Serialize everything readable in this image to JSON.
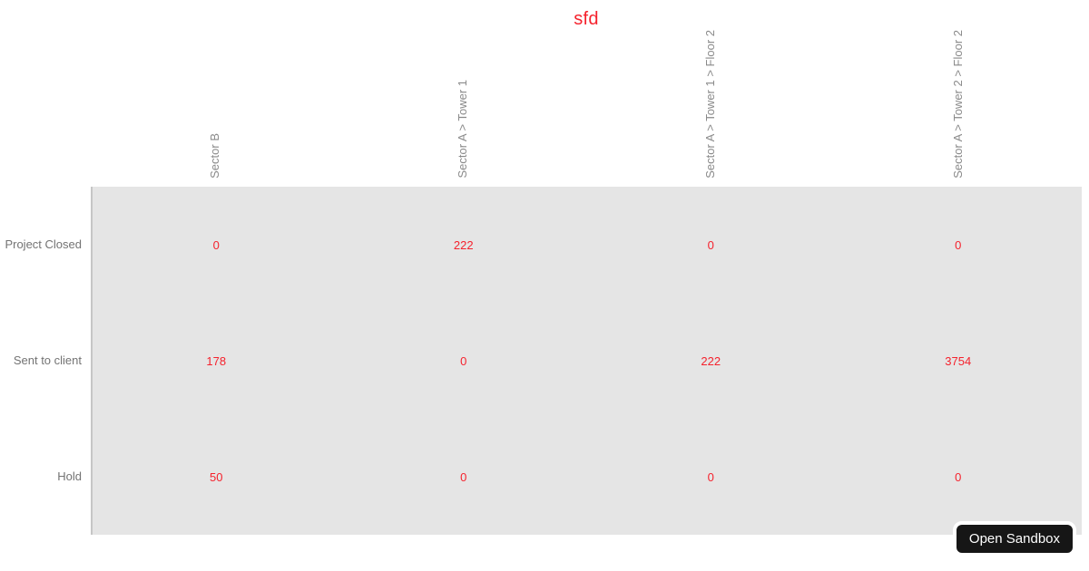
{
  "title": "sfd",
  "colors": {
    "title_red": "#f5222d",
    "value_red": "#f5222d",
    "column_label_gray": "#8a8a8a",
    "row_label_gray": "#737373",
    "plot_background": "#e5e5e5",
    "axis_line": "#c6c6c6",
    "button_background": "#161616",
    "button_text": "#ffffff"
  },
  "chart_data": {
    "type": "heatmap",
    "title": "sfd",
    "columns": [
      "Sector B",
      "Sector A > Tower 1",
      "Sector A > Tower 1 > Floor 2",
      "Sector A > Tower 2 > Floor 2"
    ],
    "rows": [
      "Project Closed",
      "Sent to client",
      "Hold"
    ],
    "values": [
      [
        0,
        222,
        0,
        0
      ],
      [
        178,
        0,
        222,
        3754
      ],
      [
        50,
        0,
        0,
        0
      ]
    ],
    "legend": "off",
    "grid": "off",
    "column_labels_rotated": true,
    "value_color": "#f5222d"
  },
  "sandbox_button": {
    "label": "Open Sandbox"
  }
}
